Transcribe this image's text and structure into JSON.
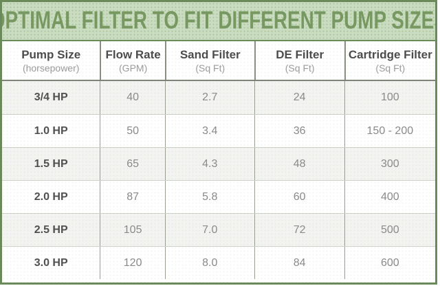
{
  "title": "OPTIMAL FILTER TO FIT DIFFERENT PUMP SIZES",
  "colors": {
    "frame_green": "#6b8a59",
    "title_bg": "#c9dcc0",
    "title_text": "#779860",
    "header_text": "#4b4b4b",
    "header_sub_text": "#9b9b9b",
    "cell_text": "#8a8a8a",
    "pump_col_text": "#4f4f4f",
    "alt_row_bg": "#f3f4f1",
    "header_divider": "#898e82",
    "row_divider": "#cdd0c8"
  },
  "header": {
    "columns": [
      {
        "label": "Pump Size",
        "sub": "(horsepower)"
      },
      {
        "label": "Flow Rate",
        "sub": "(GPM)"
      },
      {
        "label": "Sand Filter",
        "sub": "(Sq Ft)"
      },
      {
        "label": "DE Filter",
        "sub": "(Sq Ft)"
      },
      {
        "label": "Cartridge Filter",
        "sub": "(Sq Ft)"
      }
    ]
  },
  "chart_data": {
    "type": "table",
    "title": "OPTIMAL FILTER TO FIT DIFFERENT PUMP SIZES",
    "columns": [
      "Pump Size (horsepower)",
      "Flow Rate (GPM)",
      "Sand Filter (Sq Ft)",
      "DE Filter (Sq Ft)",
      "Cartridge Filter (Sq Ft)"
    ],
    "rows": [
      [
        "3/4 HP",
        "40",
        "2.7",
        "24",
        "100"
      ],
      [
        "1.0 HP",
        "50",
        "3.4",
        "36",
        "150 - 200"
      ],
      [
        "1.5 HP",
        "65",
        "4.3",
        "48",
        "300"
      ],
      [
        "2.0 HP",
        "87",
        "5.8",
        "60",
        "400"
      ],
      [
        "2.5 HP",
        "105",
        "7.0",
        "72",
        "500"
      ],
      [
        "3.0 HP",
        "120",
        "8.0",
        "84",
        "600"
      ]
    ]
  }
}
